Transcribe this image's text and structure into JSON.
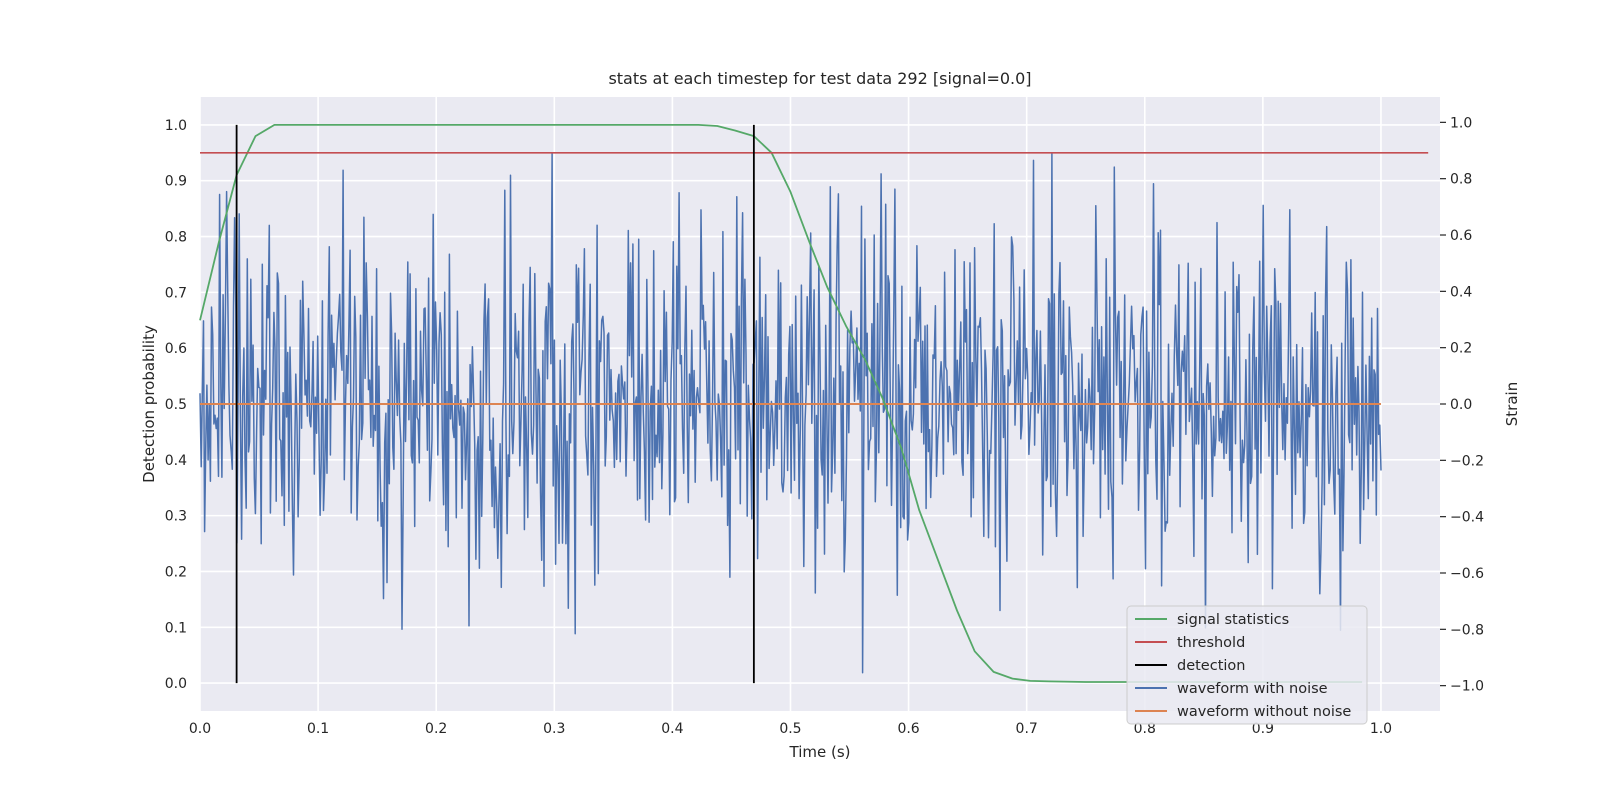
{
  "chart_data": {
    "type": "line",
    "title": "stats at each timestep for test data 292 [signal=0.0]",
    "xlabel": "Time (s)",
    "ylabel": "Detection probability",
    "y2label": "Strain",
    "xlim": [
      0.0,
      1.05
    ],
    "ylim": [
      -0.05,
      1.05
    ],
    "y2lim": [
      -1.09,
      1.09
    ],
    "grid": true,
    "legend_position": "lower-right",
    "x_ticks": [
      "0.0",
      "0.1",
      "0.2",
      "0.3",
      "0.4",
      "0.5",
      "0.6",
      "0.7",
      "0.8",
      "0.9",
      "1.0"
    ],
    "y_ticks": [
      "0.0",
      "0.1",
      "0.2",
      "0.3",
      "0.4",
      "0.5",
      "0.6",
      "0.7",
      "0.8",
      "0.9",
      "1.0"
    ],
    "y2_ticks": [
      "−1.0",
      "−0.8",
      "−0.6",
      "−0.4",
      "−0.2",
      "0.0",
      "0.2",
      "0.4",
      "0.6",
      "0.8",
      "1.0"
    ],
    "colors": {
      "plot_background": "#eaeaf2",
      "signal": "#55a868",
      "threshold": "#c44e52",
      "detection": "#000000",
      "noisy": "#4c72b0",
      "clean": "#dd8452"
    },
    "legend": [
      "signal statistics",
      "threshold",
      "detection",
      "waveform with noise",
      "waveform without noise"
    ],
    "series": [
      {
        "name": "signal statistics",
        "axis": "left",
        "x": [
          0.0,
          0.016,
          0.031,
          0.047,
          0.063,
          0.078,
          0.094,
          0.125,
          0.2,
          0.3,
          0.35,
          0.4,
          0.422,
          0.438,
          0.453,
          0.469,
          0.484,
          0.5,
          0.516,
          0.531,
          0.547,
          0.563,
          0.578,
          0.594,
          0.609,
          0.625,
          0.641,
          0.656,
          0.672,
          0.688,
          0.703,
          0.719,
          0.75,
          0.8,
          0.9,
          0.984
        ],
        "values": [
          0.65,
          0.79,
          0.91,
          0.98,
          1.0,
          1.0,
          1.0,
          1.0,
          1.0,
          1.0,
          1.0,
          1.0,
          1.0,
          0.998,
          0.99,
          0.98,
          0.95,
          0.88,
          0.79,
          0.71,
          0.64,
          0.58,
          0.51,
          0.42,
          0.31,
          0.22,
          0.13,
          0.057,
          0.02,
          0.008,
          0.004,
          0.003,
          0.002,
          0.002,
          0.002,
          0.002
        ]
      },
      {
        "name": "threshold",
        "axis": "left",
        "x": [
          0.0,
          1.04
        ],
        "values": [
          0.95,
          0.95
        ]
      },
      {
        "name": "detection",
        "axis": "left",
        "type": "vlines",
        "x": [
          0.031,
          0.469
        ],
        "ymin": 0.0,
        "ymax": 1.0
      },
      {
        "name": "waveform with noise",
        "axis": "right",
        "x_start": 0.0,
        "x_end": 1.0,
        "n_points": 1024,
        "std": 0.3,
        "values": []
      },
      {
        "name": "waveform without noise",
        "axis": "right",
        "x": [
          0.0,
          1.0
        ],
        "values": [
          0.0,
          0.0
        ]
      }
    ]
  }
}
